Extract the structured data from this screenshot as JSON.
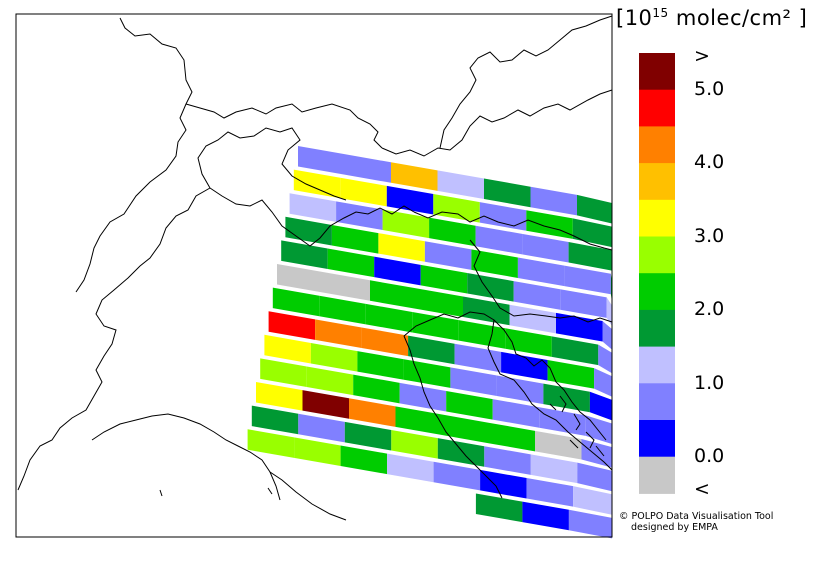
{
  "legend": {
    "unit_prefix": "[10",
    "unit_exp": "15",
    "unit_suffix": " molec/cm² ]",
    "top_label": ">",
    "bottom_label": "<",
    "ticks": [
      "5.0",
      "4.0",
      "3.0",
      "2.0",
      "1.0",
      "0.0"
    ],
    "colors": [
      "#800000",
      "#ff0000",
      "#ff8000",
      "#ffc000",
      "#ffff00",
      "#99ff00",
      "#00cc00",
      "#009933",
      "#c0c0ff",
      "#8080ff",
      "#0000ff",
      "#c8c8c8"
    ]
  },
  "credit": {
    "line1": "© POLPO Data Visualisation Tool",
    "line2": "designed by EMPA"
  },
  "swaths": [
    [
      "#8080ff",
      "#8080ff",
      "#ffc000",
      "#c0c0ff",
      "#009933",
      "#8080ff",
      "#009933",
      "#ffff00",
      "#99ff00"
    ],
    [
      "#ffff00",
      "#ffff00",
      "#0000ff",
      "#99ff00",
      "#8080ff",
      "#00cc00",
      "#009933",
      "#8080ff",
      "#c0c0ff"
    ],
    [
      "#c0c0ff",
      "#8080ff",
      "#99ff00",
      "#00cc00",
      "#8080ff",
      "#8080ff",
      "#009933",
      "#8080ff",
      "#009933"
    ],
    [
      "#009933",
      "#00cc00",
      "#ffff00",
      "#8080ff",
      "#00cc00",
      "#8080ff",
      "#8080ff",
      "#009933",
      "#c0c0ff"
    ],
    [
      "#009933",
      "#00cc00",
      "#0000ff",
      "#00cc00",
      "#009933",
      "#8080ff",
      "#8080ff",
      "#c0c0ff",
      "#8080ff"
    ],
    [
      "#c8c8c8",
      "#c8c8c8",
      "#00cc00",
      "#00cc00",
      "#009933",
      "#c0c0ff",
      "#0000ff",
      "#8080ff",
      "#00cc00"
    ],
    [
      "#00cc00",
      "#00cc00",
      "#00cc00",
      "#00cc00",
      "#00cc00",
      "#00cc00",
      "#009933",
      "#8080ff",
      "#8080ff"
    ],
    [
      "#ff0000",
      "#ff8000",
      "#ff8000",
      "#009933",
      "#8080ff",
      "#0000ff",
      "#00cc00",
      "#8080ff",
      "#0000ff"
    ],
    [
      "#ffff00",
      "#99ff00",
      "#00cc00",
      "#00cc00",
      "#8080ff",
      "#8080ff",
      "#009933",
      "#0000ff",
      "#8080ff"
    ],
    [
      "#99ff00",
      "#99ff00",
      "#00cc00",
      "#8080ff",
      "#00cc00",
      "#8080ff",
      "#8080ff",
      "#8080ff",
      "#8080ff"
    ],
    [
      "#ffff00",
      "#800000",
      "#ff8000",
      "#00cc00",
      "#00cc00",
      "#00cc00",
      "#c8c8c8",
      "#8080ff",
      "#009933"
    ],
    [
      "#009933",
      "#8080ff",
      "#009933",
      "#99ff00",
      "#009933",
      "#8080ff",
      "#c0c0ff",
      "#8080ff",
      "#c0c0ff"
    ],
    [
      "#99ff00",
      "#99ff00",
      "#00cc00",
      "#c0c0ff",
      "#8080ff",
      "#0000ff",
      "#8080ff",
      "#c0c0ff",
      "#c8c8c8"
    ],
    [
      "#ffffff",
      "#ffffff",
      "#ffffff",
      "#ffffff",
      "#ffffff",
      "#009933",
      "#0000ff",
      "#8080ff",
      "#8080ff"
    ]
  ]
}
